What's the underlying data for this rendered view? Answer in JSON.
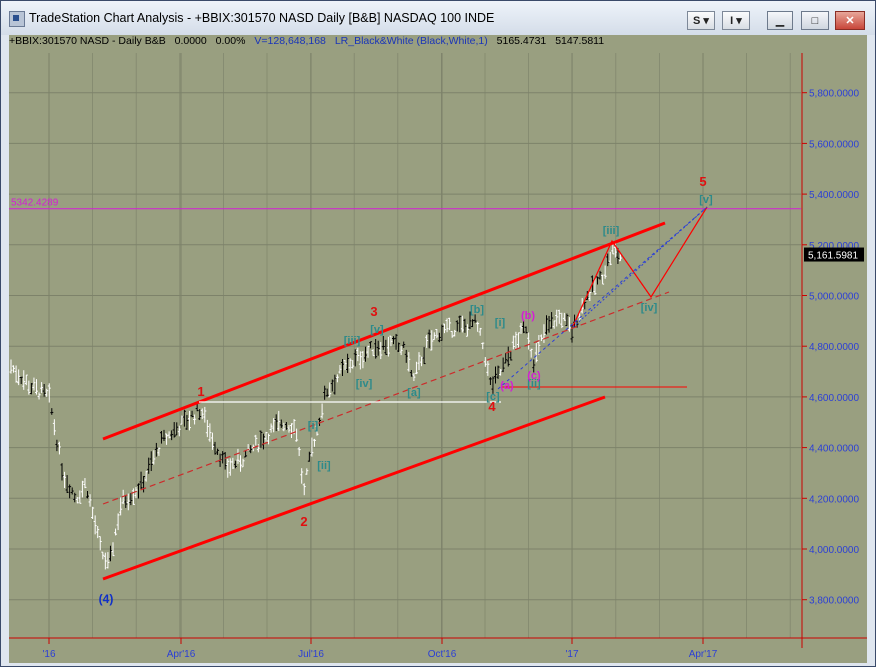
{
  "window": {
    "title": "TradeStation Chart Analysis - +BBIX:301570 NASD Daily [B&B] NASDAQ 100 INDE",
    "buttons": {
      "s_label": "S",
      "i_label": "I",
      "minimize": "▁",
      "maximize": "□",
      "close": "✕"
    }
  },
  "infobar": {
    "symbol": "+BBIX:301570 NASD - Daily  B&B",
    "change": "0.0000",
    "change_pct": "0.00%",
    "volume": "V=128,648,168",
    "study": "LR_Black&White (Black,White,1)",
    "val1": "5165.4731",
    "val2": "5147.5811"
  },
  "colors": {
    "background": "#999f80",
    "channel": "#ff0000",
    "dashed_channel": "#cc2b2b",
    "projection_blue": "#2b3fd6",
    "wave_labels_teal": "#2d8a8a",
    "magenta": "#d41ed4",
    "white_line": "#ffffff",
    "grid": "#7d826a",
    "axis": "#cc0000"
  },
  "chart_data": {
    "type": "ohlc",
    "xaxis": {
      "ticks": [
        "'16",
        "Apr'16",
        "Jul'16",
        "Oct'16",
        "'17",
        "Apr'17"
      ]
    },
    "yaxis": {
      "range": [
        3650,
        6000
      ],
      "ticks": [
        3800,
        4000,
        4200,
        4400,
        4600,
        4800,
        5000,
        5200,
        5400,
        5600,
        5800
      ],
      "tick_labels": [
        "3,800.0000",
        "4,000.0000",
        "4,200.0000",
        "4,400.0000",
        "4,600.0000",
        "4,800.0000",
        "5,000.0000",
        "5,200.0000",
        "5,400.0000",
        "5,600.0000",
        "5,800.0000"
      ]
    },
    "last_price_label": "5,161.5981",
    "horizontal_level": {
      "value": 5342.4289,
      "label": "5342.4289"
    },
    "wave_labels_red": [
      "1",
      "2",
      "3",
      "4",
      "5"
    ],
    "wave_label_blue": "(4)",
    "wave_labels_teal": [
      "[i]",
      "[ii]",
      "[iii]",
      "[iv]",
      "[v]",
      "[a]",
      "[b]",
      "[c]",
      "[i]",
      "[ii]",
      "[iii]",
      "[iv]",
      "[v]"
    ],
    "wave_labels_magenta": [
      "(a)",
      "(b)",
      "(c)"
    ]
  }
}
